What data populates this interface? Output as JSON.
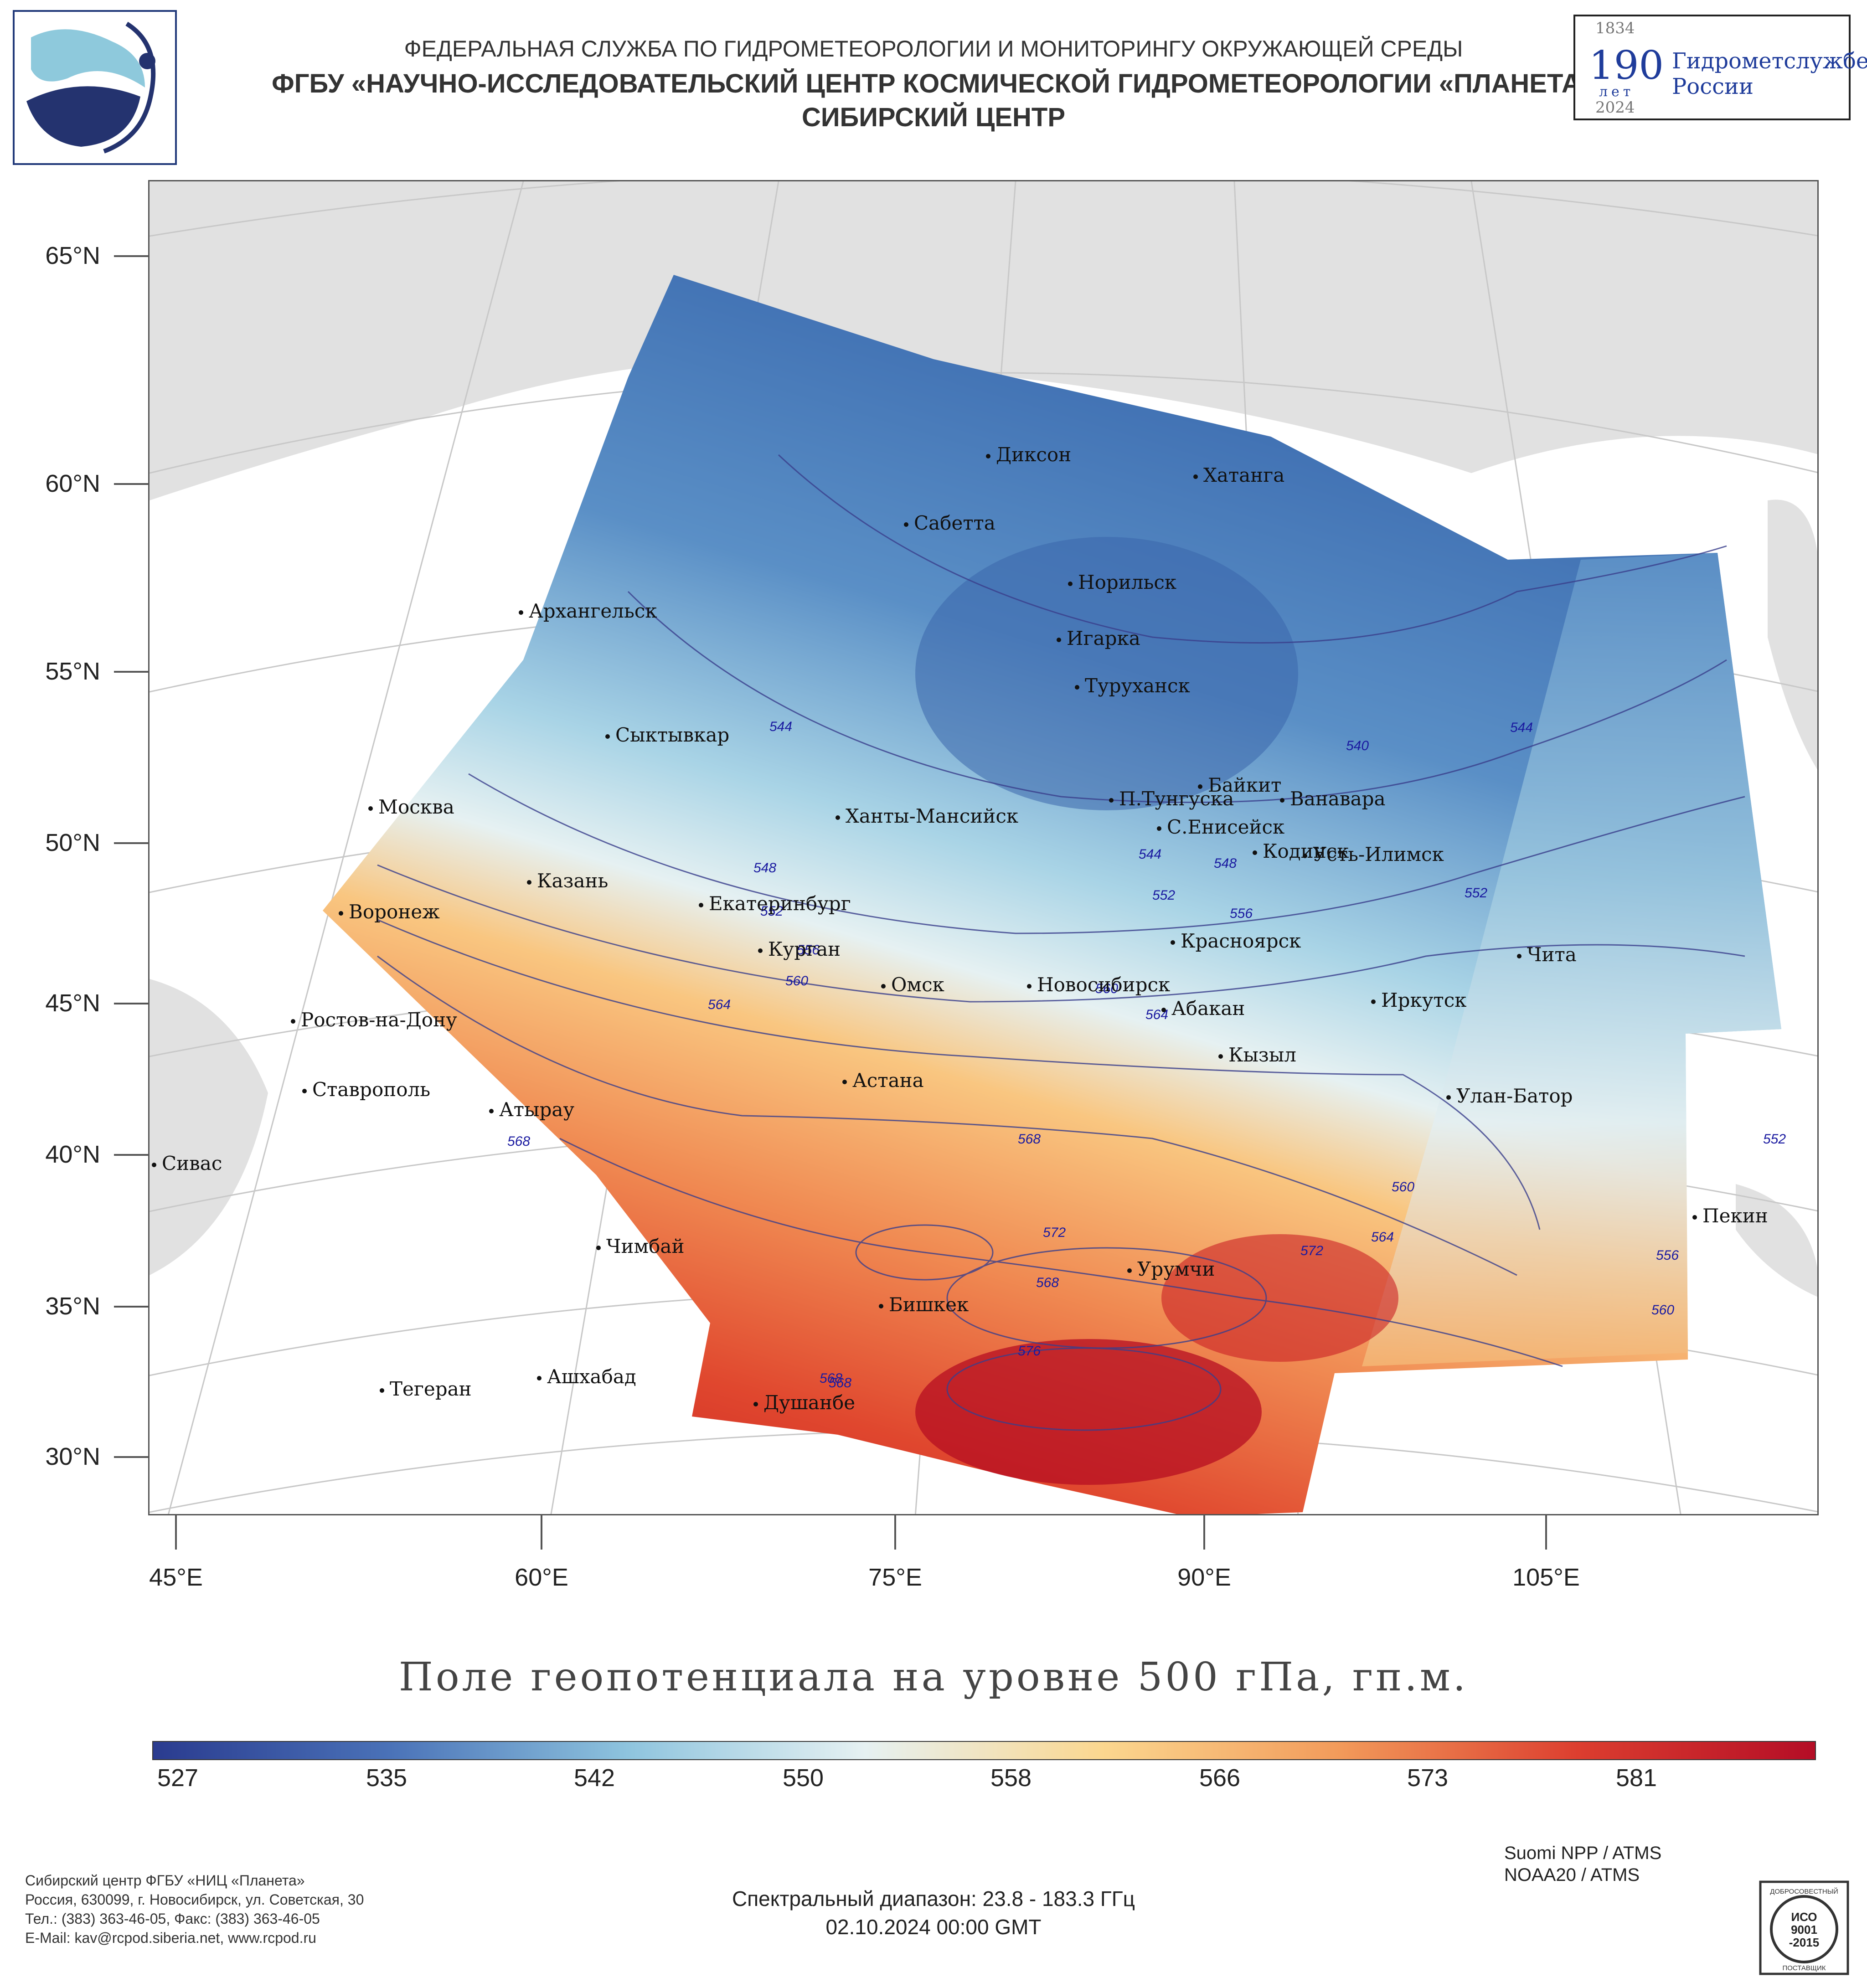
{
  "header": {
    "agency": "ФЕДЕРАЛЬНАЯ СЛУЖБА ПО ГИДРОМЕТЕОРОЛОГИИ И МОНИТОРИНГУ ОКРУЖАЮЩЕЙ СРЕДЫ",
    "center": "ФГБУ «НАУЧНО-ИССЛЕДОВАТЕЛЬСКИЙ ЦЕНТР КОСМИЧЕСКОЙ ГИДРОМЕТЕОРОЛОГИИ «ПЛАНЕТА»",
    "region": "СИБИРСКИЙ ЦЕНТР"
  },
  "badge": {
    "year_start": "1834",
    "number": "190",
    "word": "лет",
    "year_end": "2024",
    "text_line1": "Гидрометслужбе",
    "text_line2": "России"
  },
  "map": {
    "lat_labels": [
      "65°N",
      "60°N",
      "55°N",
      "50°N",
      "45°N",
      "40°N",
      "35°N",
      "30°N"
    ],
    "lon_labels": [
      "45°E",
      "60°E",
      "75°E",
      "90°E",
      "105°E"
    ],
    "cities": [
      {
        "name": "Диксон"
      },
      {
        "name": "Хатанга"
      },
      {
        "name": "Сабетта"
      },
      {
        "name": "Норильск"
      },
      {
        "name": "Архангельск"
      },
      {
        "name": "Игарка"
      },
      {
        "name": "Туруханск"
      },
      {
        "name": "Сыктывкар"
      },
      {
        "name": "Байкит"
      },
      {
        "name": "П.Тунгуска"
      },
      {
        "name": "Ванавара"
      },
      {
        "name": "Москва"
      },
      {
        "name": "Ханты-Мансийск"
      },
      {
        "name": "С.Енисейск"
      },
      {
        "name": "Кодинск"
      },
      {
        "name": "Усть-Илимск"
      },
      {
        "name": "Казань"
      },
      {
        "name": "Екатеринбург"
      },
      {
        "name": "Воронеж"
      },
      {
        "name": "Курган"
      },
      {
        "name": "Красноярск"
      },
      {
        "name": "Чита"
      },
      {
        "name": "Омск"
      },
      {
        "name": "Новосибирск"
      },
      {
        "name": "Ростов-на-Дону"
      },
      {
        "name": "Абакан"
      },
      {
        "name": "Иркутск"
      },
      {
        "name": "Кызыл"
      },
      {
        "name": "Астана"
      },
      {
        "name": "Ставрополь"
      },
      {
        "name": "Улан-Батор"
      },
      {
        "name": "Атырау"
      },
      {
        "name": "Сивас"
      },
      {
        "name": "Пекин"
      },
      {
        "name": "Чимбай"
      },
      {
        "name": "Урумчи"
      },
      {
        "name": "Бишкек"
      },
      {
        "name": "Ашхабад"
      },
      {
        "name": "Тегеран"
      },
      {
        "name": "Душанбе"
      }
    ],
    "contour_labels": [
      "544",
      "540",
      "544",
      "548",
      "544",
      "548",
      "552",
      "556",
      "552",
      "552",
      "556",
      "560",
      "564",
      "560",
      "564",
      "568",
      "568",
      "572",
      "572",
      "568",
      "576",
      "568",
      "560",
      "564",
      "556",
      "560",
      "552",
      "568"
    ]
  },
  "title": "Поле геопотенциала на уровне 500 гПа, гп.м.",
  "colorbar": {
    "labels": [
      "527",
      "535",
      "542",
      "550",
      "558",
      "566",
      "573",
      "581"
    ],
    "colors": [
      "#2a3b8f",
      "#4a72b8",
      "#8ec4de",
      "#e6f1f2",
      "#fbd78f",
      "#f29a5a",
      "#dc3e2f",
      "#b40d26"
    ]
  },
  "footer": {
    "org_line1": "Сибирский центр ФГБУ «НИЦ «Планета»",
    "org_line2": "Россия, 630099, г. Новосибирск, ул. Советская, 30",
    "org_line3": "Тел.: (383) 363-46-05, Факс: (383) 363-46-05",
    "org_line4": "E-Mail: kav@rcpod.siberia.net, www.rcpod.ru",
    "spectral": "Спектральный диапазон: 23.8 - 183.3 ГГц",
    "datetime": "02.10.2024 00:00 GMT",
    "sat1": "Suomi NPP / ATMS",
    "sat2": "NOAA20 / ATMS",
    "iso_top": "ДОБРОСОВЕСТНЫЙ",
    "iso_mid1": "ИСО",
    "iso_mid2": "9001",
    "iso_mid3": "-2015",
    "iso_bottom": "ПОСТАВЩИК"
  }
}
